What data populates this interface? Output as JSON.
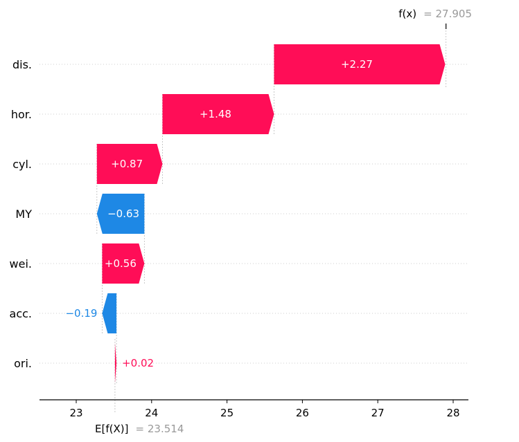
{
  "chart_data": {
    "type": "waterfall",
    "features": [
      {
        "label": "dis.",
        "value": 2.27,
        "text": "+2.27"
      },
      {
        "label": "hor.",
        "value": 1.48,
        "text": "+1.48"
      },
      {
        "label": "cyl.",
        "value": 0.87,
        "text": "+0.87"
      },
      {
        "label": "MY",
        "value": -0.63,
        "text": "−0.63"
      },
      {
        "label": "wei.",
        "value": 0.56,
        "text": "+0.56"
      },
      {
        "label": "acc.",
        "value": -0.19,
        "text": "−0.19"
      },
      {
        "label": "ori.",
        "value": 0.02,
        "text": "+0.02"
      }
    ],
    "base_value": 23.514,
    "final_value": 27.905,
    "base_label": "E[f(X)]",
    "base_value_text": "= 23.514",
    "final_label": "f(x)",
    "final_value_text": "= 27.905",
    "x_ticks": [
      23,
      24,
      25,
      26,
      27,
      28
    ],
    "x_tick_labels": [
      "23",
      "24",
      "25",
      "26",
      "27",
      "28"
    ],
    "xlim": [
      22.5,
      28.2
    ],
    "positive_color": "#ff0d57",
    "negative_color": "#1e88e5",
    "grid": "dotted horizontal row lines"
  }
}
